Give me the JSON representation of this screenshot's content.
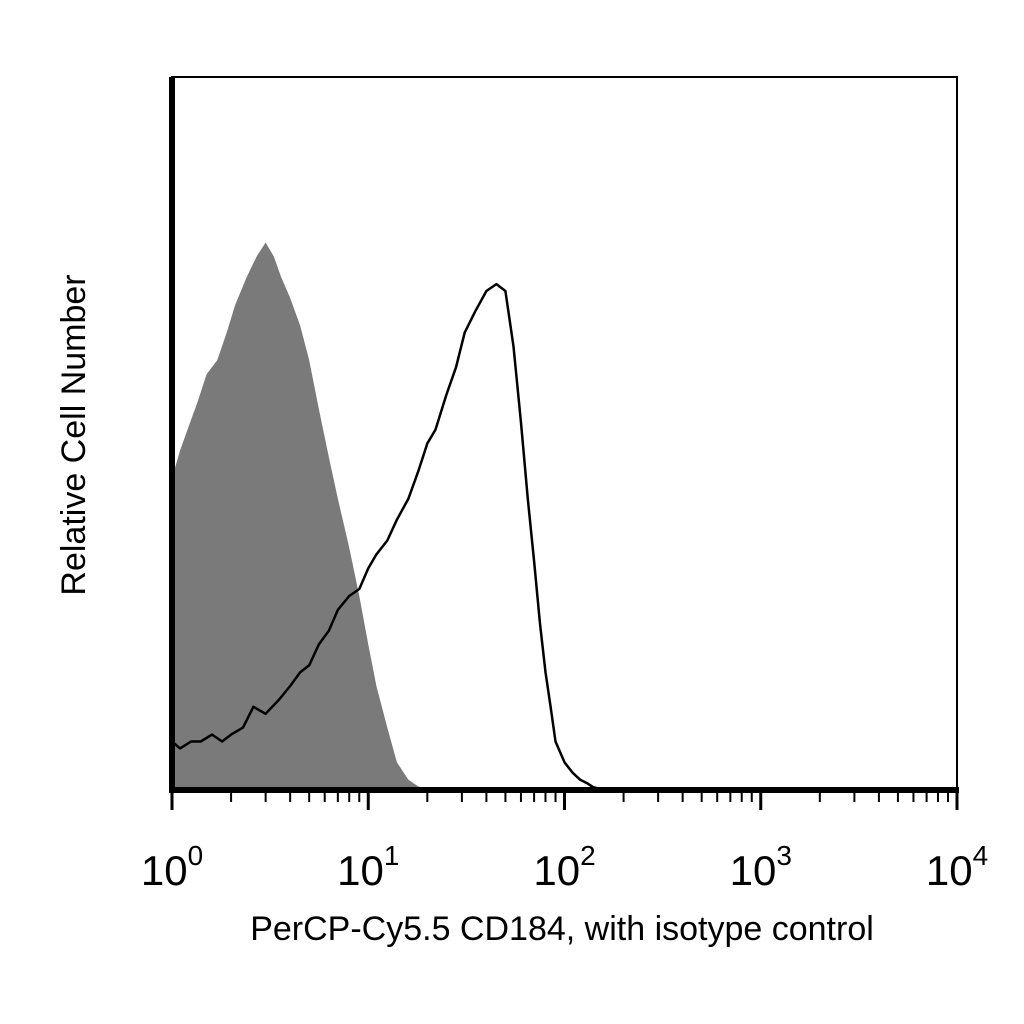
{
  "chart_data": {
    "type": "area",
    "title": "",
    "xlabel": "PerCP-Cy5.5 CD184, with isotype control",
    "ylabel": "Relative Cell Number",
    "x_scale": "log",
    "xlim": [
      1,
      10000
    ],
    "ylim": [
      0,
      1
    ],
    "grid": false,
    "x_ticks": [
      {
        "base": "10",
        "exp": "0",
        "value": 1
      },
      {
        "base": "10",
        "exp": "1",
        "value": 10
      },
      {
        "base": "10",
        "exp": "2",
        "value": 100
      },
      {
        "base": "10",
        "exp": "3",
        "value": 1000
      },
      {
        "base": "10",
        "exp": "4",
        "value": 10000
      }
    ],
    "series": [
      {
        "style": "filled",
        "color": "#7a7a7a",
        "x": [
          1.0,
          1.1,
          1.2,
          1.35,
          1.5,
          1.7,
          1.9,
          2.1,
          2.4,
          2.7,
          3.0,
          3.3,
          3.6,
          4.0,
          4.5,
          5.0,
          5.6,
          6.3,
          7.0,
          8.0,
          9.0,
          10.0,
          11.0,
          12.5,
          14.0,
          16.0,
          18.0,
          20.0,
          25.0,
          30.0,
          40.0,
          50.0
        ],
        "y": [
          0.45,
          0.49,
          0.52,
          0.56,
          0.6,
          0.62,
          0.66,
          0.7,
          0.74,
          0.77,
          0.79,
          0.77,
          0.74,
          0.71,
          0.67,
          0.62,
          0.55,
          0.48,
          0.42,
          0.35,
          0.28,
          0.21,
          0.15,
          0.09,
          0.04,
          0.015,
          0.005,
          0.002,
          0.001,
          0.001,
          0.0,
          0.0
        ]
      },
      {
        "style": "line",
        "color": "#000000",
        "x": [
          1.0,
          1.1,
          1.25,
          1.4,
          1.6,
          1.8,
          2.0,
          2.3,
          2.6,
          3.0,
          3.5,
          4.0,
          4.5,
          5.0,
          5.6,
          6.3,
          7.0,
          8.0,
          9.0,
          10.0,
          11.0,
          12.5,
          14.0,
          16.0,
          18.0,
          20.0,
          22.0,
          25.0,
          28.0,
          31.0,
          35.0,
          40.0,
          45.0,
          50.0,
          55.0,
          60.0,
          65.0,
          70.0,
          75.0,
          80.0,
          85.0,
          90.0,
          100.0,
          110.0,
          120.0,
          130.0,
          140.0,
          160.0
        ],
        "y": [
          0.07,
          0.06,
          0.07,
          0.07,
          0.08,
          0.07,
          0.08,
          0.09,
          0.12,
          0.11,
          0.13,
          0.15,
          0.17,
          0.18,
          0.21,
          0.23,
          0.26,
          0.28,
          0.29,
          0.32,
          0.34,
          0.36,
          0.39,
          0.42,
          0.46,
          0.5,
          0.52,
          0.57,
          0.61,
          0.66,
          0.69,
          0.72,
          0.73,
          0.72,
          0.64,
          0.53,
          0.42,
          0.33,
          0.24,
          0.17,
          0.12,
          0.07,
          0.04,
          0.025,
          0.015,
          0.01,
          0.004,
          0.0
        ]
      }
    ]
  }
}
